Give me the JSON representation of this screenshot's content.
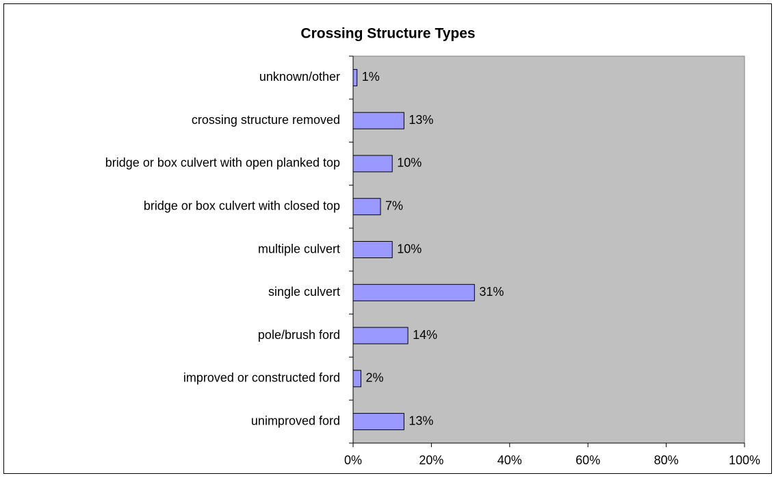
{
  "chart_data": {
    "type": "bar",
    "orientation": "horizontal",
    "title": "Crossing Structure Types",
    "categories": [
      "unknown/other",
      "crossing structure removed",
      "bridge or box culvert with open planked top",
      "bridge or box culvert with closed top",
      "multiple culvert",
      "single culvert",
      "pole/brush ford",
      "improved or constructed ford",
      "unimproved ford"
    ],
    "values": [
      1,
      13,
      10,
      7,
      10,
      31,
      14,
      2,
      13
    ],
    "value_labels": [
      "1%",
      "13%",
      "10%",
      "7%",
      "10%",
      "31%",
      "14%",
      "2%",
      "13%"
    ],
    "color": "#9999ff",
    "plot_background": "#c0c0c0",
    "xlim": [
      0,
      100
    ],
    "xticks": [
      {
        "value": 0,
        "label": "0%"
      },
      {
        "value": 20,
        "label": "20%"
      },
      {
        "value": 40,
        "label": "40%"
      },
      {
        "value": 60,
        "label": "60%"
      },
      {
        "value": 80,
        "label": "80%"
      },
      {
        "value": 100,
        "label": "100%"
      }
    ],
    "grid": false
  }
}
